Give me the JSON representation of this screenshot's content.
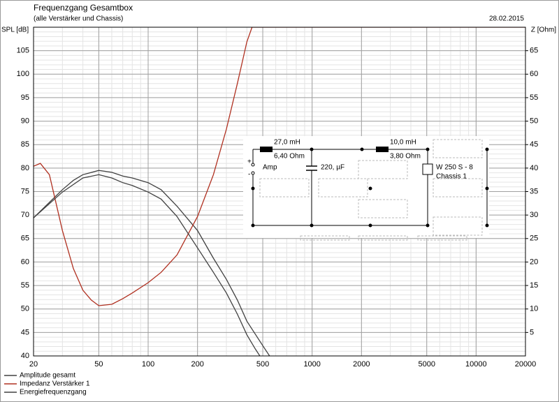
{
  "chart_data": {
    "type": "line",
    "title": "Frequenzgang Gesamtbox",
    "subtitle": "(alle Verstärker und Chassis)",
    "date": "28.02.2015",
    "y_label": "SPL [dB]",
    "y2_label": "Z [Ohm]",
    "log_x": true,
    "grid": true,
    "xlim": [
      20,
      20000
    ],
    "xticks": [
      20,
      50,
      100,
      200,
      500,
      1000,
      2000,
      5000,
      10000,
      20000
    ],
    "ylim": [
      40,
      110
    ],
    "yticks": [
      40,
      45,
      50,
      55,
      60,
      65,
      70,
      75,
      80,
      85,
      90,
      95,
      100,
      105
    ],
    "y2lim": [
      0,
      70
    ],
    "y2ticks": [
      5,
      10,
      15,
      20,
      25,
      30,
      35,
      40,
      45,
      50,
      55,
      60,
      65
    ],
    "series": [
      {
        "name": "Amplitude gesamt",
        "color": "#404040",
        "x": [
          20,
          25,
          30,
          35,
          40,
          50,
          60,
          70,
          80,
          100,
          120,
          150,
          200,
          250,
          300,
          350,
          400,
          500,
          550
        ],
        "values": [
          69.4,
          72.7,
          75.4,
          77.4,
          78.6,
          79.5,
          79.1,
          78.3,
          77.9,
          76.9,
          75.4,
          71.9,
          66.7,
          60.8,
          56.3,
          51.9,
          47.4,
          42.2,
          40
        ]
      },
      {
        "name": "Impedanz Verstärker 1",
        "color": "#b03020",
        "axis": "y2",
        "x": [
          20,
          22,
          25,
          30,
          35,
          40,
          45,
          50,
          60,
          70,
          80,
          100,
          120,
          150,
          200,
          250,
          300,
          350,
          400,
          430,
          20000
        ],
        "values": [
          40.4,
          41,
          38.6,
          26.7,
          18.6,
          14,
          11.9,
          10.7,
          11,
          12.2,
          13.4,
          15.6,
          17.8,
          21.5,
          29.7,
          38.6,
          48.3,
          58,
          66.9,
          70,
          70
        ]
      },
      {
        "name": "Energiefrequenzgang",
        "color": "#404040",
        "x": [
          20,
          30,
          40,
          50,
          60,
          70,
          80,
          100,
          120,
          150,
          200,
          250,
          300,
          350,
          400,
          450,
          480
        ],
        "values": [
          69.4,
          74.9,
          77.9,
          78.6,
          77.9,
          76.9,
          76.3,
          74.9,
          73.4,
          69.7,
          63,
          57.8,
          53.4,
          48.9,
          44.5,
          41.5,
          40
        ]
      }
    ]
  },
  "schematic": {
    "l1_value": "27,0 mH",
    "l1_resistance": "6,40 Ohm",
    "source": "Amp",
    "plus": "+",
    "minus": "-",
    "c1_value": "220, µF",
    "l2_value": "10,0 mH",
    "l2_resistance": "3,80 Ohm",
    "driver": "W 250 S - 8",
    "driver_name": "Chassis 1"
  }
}
